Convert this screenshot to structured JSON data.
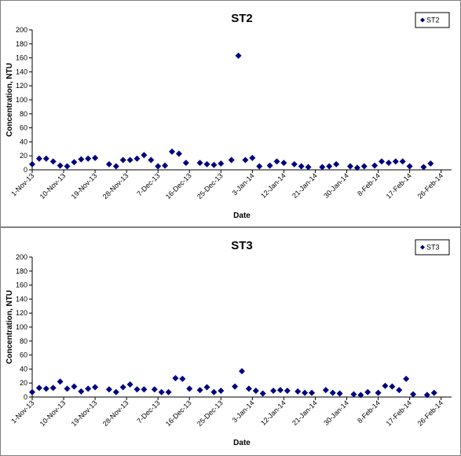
{
  "chart_data": [
    {
      "type": "scatter",
      "title": "ST2",
      "xlabel": "Date",
      "ylabel": "Concentration, NTU",
      "ylim": [
        0,
        200
      ],
      "yticks": [
        0,
        20,
        40,
        60,
        80,
        100,
        120,
        140,
        160,
        180,
        200
      ],
      "xlim": [
        "2013-11-01",
        "2014-03-01"
      ],
      "xtick_labels": [
        "1-Nov-13",
        "10-Nov-13",
        "19-Nov-13",
        "28-Nov-13",
        "7-Dec-13",
        "16-Dec-13",
        "25-Dec-13",
        "3-Jan-14",
        "12-Jan-14",
        "21-Jan-14",
        "30-Jan-14",
        "8-Feb-14",
        "17-Feb-14",
        "26-Feb-14"
      ],
      "grid": false,
      "legend": "top-right",
      "series": [
        {
          "name": "ST2",
          "color": "#000080",
          "marker": "diamond",
          "points": [
            [
              "2013-11-01",
              8
            ],
            [
              "2013-11-03",
              16
            ],
            [
              "2013-11-05",
              16
            ],
            [
              "2013-11-07",
              12
            ],
            [
              "2013-11-09",
              6
            ],
            [
              "2013-11-11",
              5
            ],
            [
              "2013-11-13",
              11
            ],
            [
              "2013-11-15",
              15
            ],
            [
              "2013-11-17",
              16
            ],
            [
              "2013-11-19",
              17
            ],
            [
              "2013-11-23",
              8
            ],
            [
              "2013-11-25",
              5
            ],
            [
              "2013-11-27",
              14
            ],
            [
              "2013-11-29",
              14
            ],
            [
              "2013-12-01",
              16
            ],
            [
              "2013-12-03",
              21
            ],
            [
              "2013-12-05",
              14
            ],
            [
              "2013-12-07",
              5
            ],
            [
              "2013-12-09",
              6
            ],
            [
              "2013-12-11",
              26
            ],
            [
              "2013-12-13",
              23
            ],
            [
              "2013-12-15",
              10
            ],
            [
              "2013-12-19",
              10
            ],
            [
              "2013-12-21",
              8
            ],
            [
              "2013-12-23",
              7
            ],
            [
              "2013-12-25",
              9
            ],
            [
              "2013-12-28",
              14
            ],
            [
              "2013-12-30",
              163
            ],
            [
              "2014-01-01",
              14
            ],
            [
              "2014-01-03",
              17
            ],
            [
              "2014-01-05",
              5
            ],
            [
              "2014-01-08",
              6
            ],
            [
              "2014-01-10",
              12
            ],
            [
              "2014-01-12",
              10
            ],
            [
              "2014-01-15",
              8
            ],
            [
              "2014-01-17",
              5
            ],
            [
              "2014-01-19",
              4
            ],
            [
              "2014-01-23",
              4
            ],
            [
              "2014-01-25",
              5
            ],
            [
              "2014-01-27",
              8
            ],
            [
              "2014-01-31",
              5
            ],
            [
              "2014-02-02",
              3
            ],
            [
              "2014-02-04",
              5
            ],
            [
              "2014-02-07",
              6
            ],
            [
              "2014-02-09",
              12
            ],
            [
              "2014-02-11",
              10
            ],
            [
              "2014-02-13",
              12
            ],
            [
              "2014-02-15",
              12
            ],
            [
              "2014-02-17",
              5
            ],
            [
              "2014-02-21",
              4
            ],
            [
              "2014-02-23",
              9
            ]
          ]
        }
      ]
    },
    {
      "type": "scatter",
      "title": "ST3",
      "xlabel": "Date",
      "ylabel": "Concentration, NTU",
      "ylim": [
        0,
        200
      ],
      "yticks": [
        0,
        20,
        40,
        60,
        80,
        100,
        120,
        140,
        160,
        180,
        200
      ],
      "xlim": [
        "2013-11-01",
        "2014-03-01"
      ],
      "xtick_labels": [
        "1-Nov-13",
        "10-Nov-13",
        "19-Nov-13",
        "28-Nov-13",
        "7-Dec-13",
        "16-Dec-13",
        "25-Dec-13",
        "3-Jan-14",
        "12-Jan-14",
        "21-Jan-14",
        "30-Jan-14",
        "8-Feb-14",
        "17-Feb-14",
        "26-Feb-14"
      ],
      "grid": false,
      "legend": "top-right",
      "series": [
        {
          "name": "ST3",
          "color": "#000080",
          "marker": "diamond",
          "points": [
            [
              "2013-11-01",
              7
            ],
            [
              "2013-11-03",
              13
            ],
            [
              "2013-11-05",
              12
            ],
            [
              "2013-11-07",
              13
            ],
            [
              "2013-11-09",
              22
            ],
            [
              "2013-11-11",
              12
            ],
            [
              "2013-11-13",
              15
            ],
            [
              "2013-11-15",
              8
            ],
            [
              "2013-11-17",
              12
            ],
            [
              "2013-11-19",
              14
            ],
            [
              "2013-11-23",
              11
            ],
            [
              "2013-11-25",
              7
            ],
            [
              "2013-11-27",
              14
            ],
            [
              "2013-11-29",
              18
            ],
            [
              "2013-12-01",
              11
            ],
            [
              "2013-12-03",
              11
            ],
            [
              "2013-12-06",
              11
            ],
            [
              "2013-12-08",
              7
            ],
            [
              "2013-12-10",
              7
            ],
            [
              "2013-12-12",
              27
            ],
            [
              "2013-12-14",
              26
            ],
            [
              "2013-12-16",
              12
            ],
            [
              "2013-12-19",
              10
            ],
            [
              "2013-12-21",
              14
            ],
            [
              "2013-12-23",
              7
            ],
            [
              "2013-12-25",
              9
            ],
            [
              "2013-12-29",
              15
            ],
            [
              "2013-12-31",
              37
            ],
            [
              "2014-01-02",
              12
            ],
            [
              "2014-01-04",
              9
            ],
            [
              "2014-01-06",
              5
            ],
            [
              "2014-01-09",
              9
            ],
            [
              "2014-01-11",
              10
            ],
            [
              "2014-01-13",
              9
            ],
            [
              "2014-01-16",
              8
            ],
            [
              "2014-01-18",
              6
            ],
            [
              "2014-01-20",
              6
            ],
            [
              "2014-01-24",
              10
            ],
            [
              "2014-01-26",
              6
            ],
            [
              "2014-01-28",
              5
            ],
            [
              "2014-02-01",
              4
            ],
            [
              "2014-02-03",
              3
            ],
            [
              "2014-02-05",
              7
            ],
            [
              "2014-02-08",
              6
            ],
            [
              "2014-02-10",
              16
            ],
            [
              "2014-02-12",
              15
            ],
            [
              "2014-02-14",
              10
            ],
            [
              "2014-02-16",
              26
            ],
            [
              "2014-02-18",
              4
            ],
            [
              "2014-02-22",
              3
            ],
            [
              "2014-02-24",
              6
            ]
          ]
        }
      ]
    }
  ]
}
